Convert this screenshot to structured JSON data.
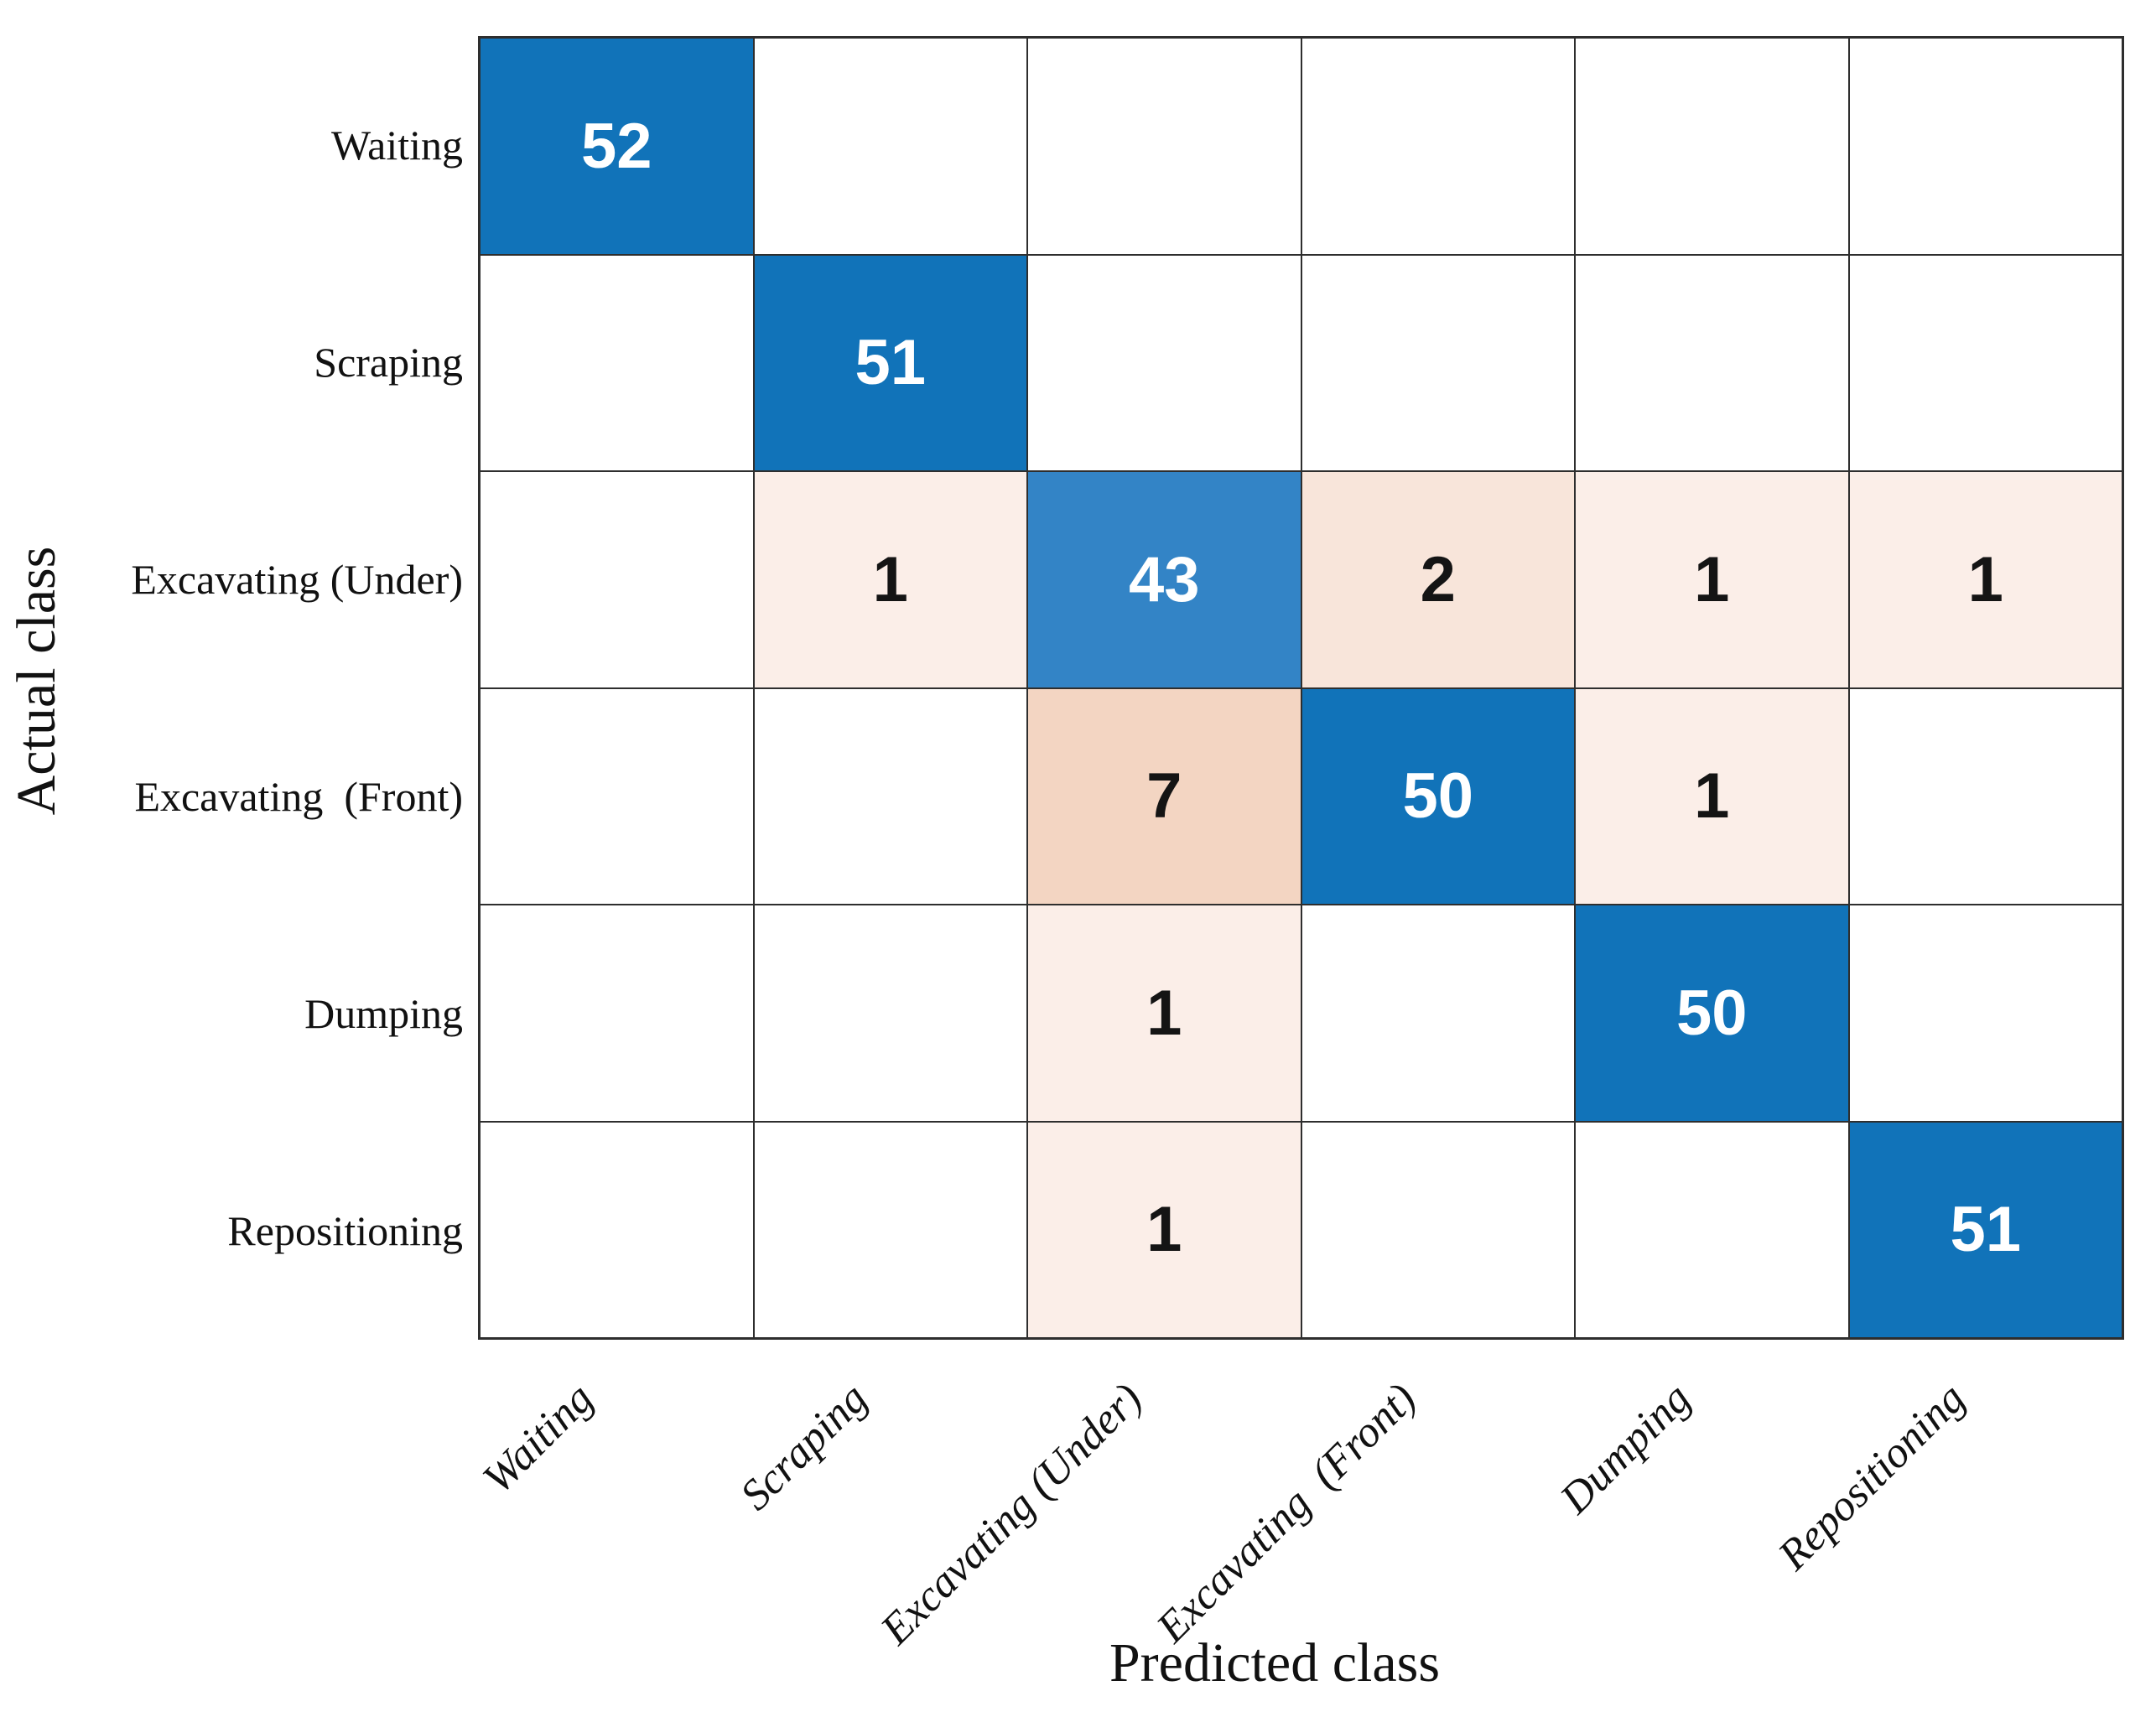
{
  "chart_data": {
    "type": "heatmap",
    "subtype": "confusion-matrix",
    "title": "",
    "xlabel": "Predicted class",
    "ylabel": "Actual class",
    "x_categories": [
      "Waiting",
      "Scraping",
      "Excavating (Under)",
      "Excavating  (Front)",
      "Dumping",
      "Repositioning"
    ],
    "y_categories": [
      "Waiting",
      "Scraping",
      "Excavating (Under)",
      "Excavating  (Front)",
      "Dumping",
      "Repositioning"
    ],
    "values": [
      [
        52,
        null,
        null,
        null,
        null,
        null
      ],
      [
        null,
        51,
        null,
        null,
        null,
        null
      ],
      [
        null,
        1,
        43,
        2,
        1,
        1
      ],
      [
        null,
        null,
        7,
        50,
        1,
        null
      ],
      [
        null,
        null,
        1,
        null,
        50,
        null
      ],
      [
        null,
        null,
        1,
        null,
        null,
        51
      ]
    ],
    "cells": [
      [
        {
          "v": "52",
          "bg": "#1173b9",
          "fg": "#ffffff"
        },
        null,
        null,
        null,
        null,
        null
      ],
      [
        null,
        {
          "v": "51",
          "bg": "#1173b9",
          "fg": "#ffffff"
        },
        null,
        null,
        null,
        null
      ],
      [
        null,
        {
          "v": "1",
          "bg": "#fbeee8",
          "fg": "#141414"
        },
        {
          "v": "43",
          "bg": "#3384c6",
          "fg": "#ffffff"
        },
        {
          "v": "2",
          "bg": "#f8e5da",
          "fg": "#141414"
        },
        {
          "v": "1",
          "bg": "#fbeee8",
          "fg": "#141414"
        },
        {
          "v": "1",
          "bg": "#fbeee8",
          "fg": "#141414"
        }
      ],
      [
        null,
        null,
        {
          "v": "7",
          "bg": "#f3d5c2",
          "fg": "#141414"
        },
        {
          "v": "50",
          "bg": "#1173b9",
          "fg": "#ffffff"
        },
        {
          "v": "1",
          "bg": "#fbeee8",
          "fg": "#141414"
        },
        null
      ],
      [
        null,
        null,
        {
          "v": "1",
          "bg": "#fbeee8",
          "fg": "#141414"
        },
        null,
        {
          "v": "50",
          "bg": "#1173b9",
          "fg": "#ffffff"
        },
        null
      ],
      [
        null,
        null,
        {
          "v": "1",
          "bg": "#fbeee8",
          "fg": "#141414"
        },
        null,
        null,
        {
          "v": "51",
          "bg": "#1173b9",
          "fg": "#ffffff"
        }
      ]
    ],
    "colors": {
      "diagonal_blue": "#1173b9",
      "light_blue": "#3384c6",
      "pink_strong": "#f3d5c2",
      "pink_medium": "#f8e5da",
      "pink_light": "#fbeee8",
      "empty_bg": "#ffffff",
      "grid_line": "#2e2e2e",
      "number_on_blue": "#ffffff",
      "number_on_pink": "#141414"
    },
    "layout_hints": {
      "rows": 6,
      "cols": 6,
      "x_tick_rotation_deg": 45,
      "grid_on": true,
      "legend": "none"
    }
  }
}
